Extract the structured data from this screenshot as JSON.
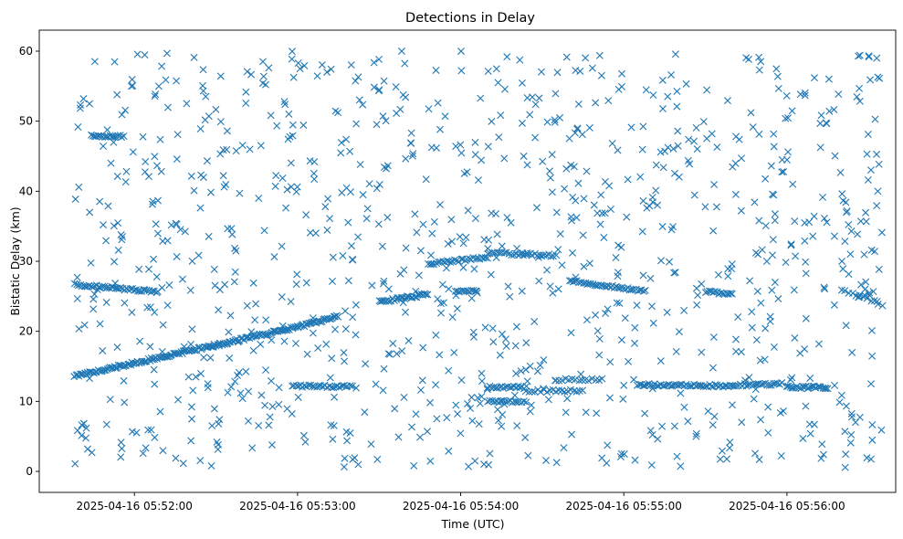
{
  "chart_data": {
    "type": "scatter",
    "title": "Detections in Delay",
    "xlabel": "Time (UTC)",
    "ylabel": "Bistatic Delay (km)",
    "x_axis_kind": "datetime",
    "xlim": [
      "2025-04-16 05:51:25",
      "2025-04-16 05:56:40"
    ],
    "ylim": [
      -3,
      63
    ],
    "x_ticks": [
      "2025-04-16 05:52:00",
      "2025-04-16 05:53:00",
      "2025-04-16 05:54:00",
      "2025-04-16 05:55:00",
      "2025-04-16 05:56:00"
    ],
    "y_ticks": [
      0,
      10,
      20,
      30,
      40,
      50,
      60
    ],
    "marker": "x",
    "color": "#1f77b4",
    "grid": false,
    "series": [
      {
        "tracks": [
          {
            "t": [
              "2025-04-16 05:51:38",
              "2025-04-16 05:53:00",
              "2025-04-16 05:53:15"
            ],
            "y": [
              13.6,
              20.6,
              22.2
            ],
            "n": 180
          },
          {
            "t": [
              "2025-04-16 05:51:38",
              "2025-04-16 05:52:08"
            ],
            "y": [
              26.7,
              25.6
            ],
            "n": 45
          },
          {
            "t": [
              "2025-04-16 05:51:44",
              "2025-04-16 05:51:56"
            ],
            "y": [
              48.0,
              47.8
            ],
            "n": 20
          },
          {
            "t": [
              "2025-04-16 05:52:58",
              "2025-04-16 05:53:20"
            ],
            "y": [
              12.2,
              12.1
            ],
            "n": 30
          },
          {
            "t": [
              "2025-04-16 05:53:30",
              "2025-04-16 05:53:48"
            ],
            "y": [
              24.2,
              25.3
            ],
            "n": 30
          },
          {
            "t": [
              "2025-04-16 05:53:48",
              "2025-04-16 05:54:10"
            ],
            "y": [
              29.6,
              30.6
            ],
            "n": 30
          },
          {
            "t": [
              "2025-04-16 05:54:10",
              "2025-04-16 05:54:35"
            ],
            "y": [
              31.2,
              30.8
            ],
            "n": 30
          },
          {
            "t": [
              "2025-04-16 05:53:58",
              "2025-04-16 05:54:06"
            ],
            "y": [
              25.8,
              25.8
            ],
            "n": 12
          },
          {
            "t": [
              "2025-04-16 05:54:10",
              "2025-04-16 05:54:24"
            ],
            "y": [
              12.0,
              12.0
            ],
            "n": 20
          },
          {
            "t": [
              "2025-04-16 05:54:10",
              "2025-04-16 05:54:24"
            ],
            "y": [
              10.0,
              10.0
            ],
            "n": 18
          },
          {
            "t": [
              "2025-04-16 05:54:24",
              "2025-04-16 05:54:45"
            ],
            "y": [
              11.5,
              11.5
            ],
            "n": 20
          },
          {
            "t": [
              "2025-04-16 05:54:35",
              "2025-04-16 05:54:52"
            ],
            "y": [
              13.1,
              13.1
            ],
            "n": 15
          },
          {
            "t": [
              "2025-04-16 05:54:40",
              "2025-04-16 05:55:08"
            ],
            "y": [
              27.2,
              25.7
            ],
            "n": 40
          },
          {
            "t": [
              "2025-04-16 05:55:05",
              "2025-04-16 05:55:40"
            ],
            "y": [
              12.4,
              12.2
            ],
            "n": 50
          },
          {
            "t": [
              "2025-04-16 05:55:30",
              "2025-04-16 05:55:40"
            ],
            "y": [
              25.6,
              25.4
            ],
            "n": 15
          },
          {
            "t": [
              "2025-04-16 05:55:40",
              "2025-04-16 05:55:58"
            ],
            "y": [
              12.3,
              12.5
            ],
            "n": 25
          },
          {
            "t": [
              "2025-04-16 05:56:00",
              "2025-04-16 05:56:15"
            ],
            "y": [
              12.0,
              12.0
            ],
            "n": 25
          },
          {
            "t": [
              "2025-04-16 05:56:20",
              "2025-04-16 05:56:35"
            ],
            "y": [
              26.0,
              23.8
            ],
            "n": 12
          }
        ],
        "scatter": {
          "t_range": [
            "2025-04-16 05:51:38",
            "2025-04-16 05:56:35"
          ],
          "y_range": [
            0.5,
            60
          ],
          "n": 1000
        }
      }
    ]
  }
}
